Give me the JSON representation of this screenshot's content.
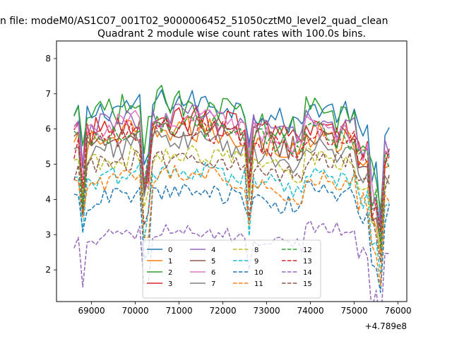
{
  "suptitle": "n file: modeM0/AS1C07_001T02_9000006452_51050cztM0_level2_quad_clean",
  "chart_data": {
    "type": "line",
    "title": "Quadrant 2 module wise count rates with 100.0s bins.",
    "xlabel": "",
    "ylabel": "",
    "x_offset_label": "+4.789e8",
    "xlim": [
      68200,
      76200
    ],
    "ylim": [
      1.1,
      8.5
    ],
    "xticks": [
      69000,
      70000,
      71000,
      72000,
      73000,
      74000,
      75000,
      76000
    ],
    "xtick_labels": [
      "69000",
      "70000",
      "71000",
      "72000",
      "73000",
      "74000",
      "75000",
      "76000"
    ],
    "yticks": [
      2,
      3,
      4,
      5,
      6,
      7,
      8
    ],
    "ytick_labels": [
      "2",
      "3",
      "4",
      "5",
      "6",
      "7",
      "8"
    ],
    "legend_location": "lower center",
    "legend_columns": 4,
    "x_start": 68600,
    "x_step": 100,
    "n_points": 73,
    "series": [
      {
        "name": "0",
        "color": "#1f77b4",
        "dash": "solid",
        "base": 6.3,
        "amp": 0.35,
        "trend": 0.5
      },
      {
        "name": "1",
        "color": "#ff7f0e",
        "dash": "solid",
        "base": 5.5,
        "amp": 0.4,
        "trend": 0.5
      },
      {
        "name": "2",
        "color": "#2ca02c",
        "dash": "solid",
        "base": 6.2,
        "amp": 0.45,
        "trend": 0.6
      },
      {
        "name": "3",
        "color": "#d62728",
        "dash": "solid",
        "base": 5.8,
        "amp": 0.4,
        "trend": 0.5
      },
      {
        "name": "4",
        "color": "#9467bd",
        "dash": "solid",
        "base": 5.9,
        "amp": 0.35,
        "trend": 0.5
      },
      {
        "name": "5",
        "color": "#8c564b",
        "dash": "solid",
        "base": 5.6,
        "amp": 0.35,
        "trend": 0.5
      },
      {
        "name": "6",
        "color": "#e377c2",
        "dash": "solid",
        "base": 5.8,
        "amp": 0.35,
        "trend": 0.5
      },
      {
        "name": "7",
        "color": "#7f7f7f",
        "dash": "solid",
        "base": 5.2,
        "amp": 0.35,
        "trend": 0.5
      },
      {
        "name": "8",
        "color": "#bcbd22",
        "dash": "dashed",
        "base": 4.9,
        "amp": 0.3,
        "trend": 0.4
      },
      {
        "name": "9",
        "color": "#17becf",
        "dash": "dashed",
        "base": 4.4,
        "amp": 0.3,
        "trend": 0.4
      },
      {
        "name": "10",
        "color": "#1f77b4",
        "dash": "dashed",
        "base": 3.9,
        "amp": 0.3,
        "trend": 0.3
      },
      {
        "name": "11",
        "color": "#ff7f0e",
        "dash": "dashed",
        "base": 4.3,
        "amp": 0.3,
        "trend": 0.4
      },
      {
        "name": "12",
        "color": "#2ca02c",
        "dash": "dashed",
        "base": 5.6,
        "amp": 0.35,
        "trend": 0.5
      },
      {
        "name": "13",
        "color": "#d62728",
        "dash": "dashed",
        "base": 5.5,
        "amp": 0.35,
        "trend": 0.5
      },
      {
        "name": "14",
        "color": "#9467bd",
        "dash": "dashed",
        "base": 2.8,
        "amp": 0.2,
        "trend": 0.3
      },
      {
        "name": "15",
        "color": "#8c564b",
        "dash": "dashed",
        "base": 4.8,
        "amp": 0.3,
        "trend": 0.4
      }
    ]
  }
}
